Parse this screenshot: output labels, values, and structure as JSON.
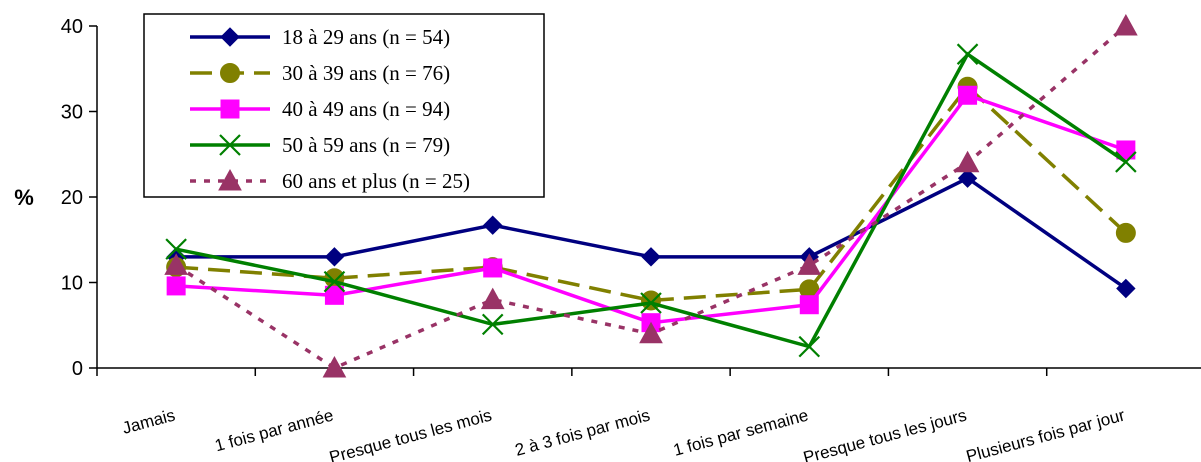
{
  "chart_data": {
    "type": "line",
    "title": "",
    "xlabel": "",
    "ylabel": "%",
    "ylim": [
      0,
      40
    ],
    "yticks": [
      0,
      10,
      20,
      30,
      40
    ],
    "grid": false,
    "legend_position": "top-left",
    "categories": [
      "Jamais",
      "1 fois par année",
      "Presque tous les mois",
      "2 à 3 fois par mois",
      "1 fois par semaine",
      "Presque tous les jours",
      "Plusieurs fois par jour"
    ],
    "series": [
      {
        "name": "18 à 29 ans (n = 54)",
        "color": "#000080",
        "marker": "diamond",
        "line_style": "solid",
        "values": [
          13,
          13,
          16.7,
          13,
          13,
          22.2,
          9.3
        ]
      },
      {
        "name": "30 à 39 ans (n = 76)",
        "color": "#808000",
        "marker": "circle",
        "line_style": "dashed",
        "values": [
          11.8,
          10.5,
          11.8,
          7.9,
          9.2,
          32.9,
          15.8
        ]
      },
      {
        "name": "40 à 49 ans (n = 94)",
        "color": "#ff00ff",
        "marker": "square",
        "line_style": "solid",
        "values": [
          9.6,
          8.5,
          11.7,
          5.3,
          7.4,
          31.9,
          25.5
        ]
      },
      {
        "name": "50 à 59 ans (n = 79)",
        "color": "#008000",
        "marker": "x",
        "line_style": "solid",
        "values": [
          13.9,
          10.1,
          5.1,
          7.6,
          2.5,
          36.7,
          24.1
        ]
      },
      {
        "name": "60 ans et plus (n = 25)",
        "color": "#993366",
        "marker": "triangle",
        "line_style": "dotted",
        "values": [
          12,
          0,
          8,
          4,
          12,
          24,
          40
        ]
      }
    ]
  }
}
